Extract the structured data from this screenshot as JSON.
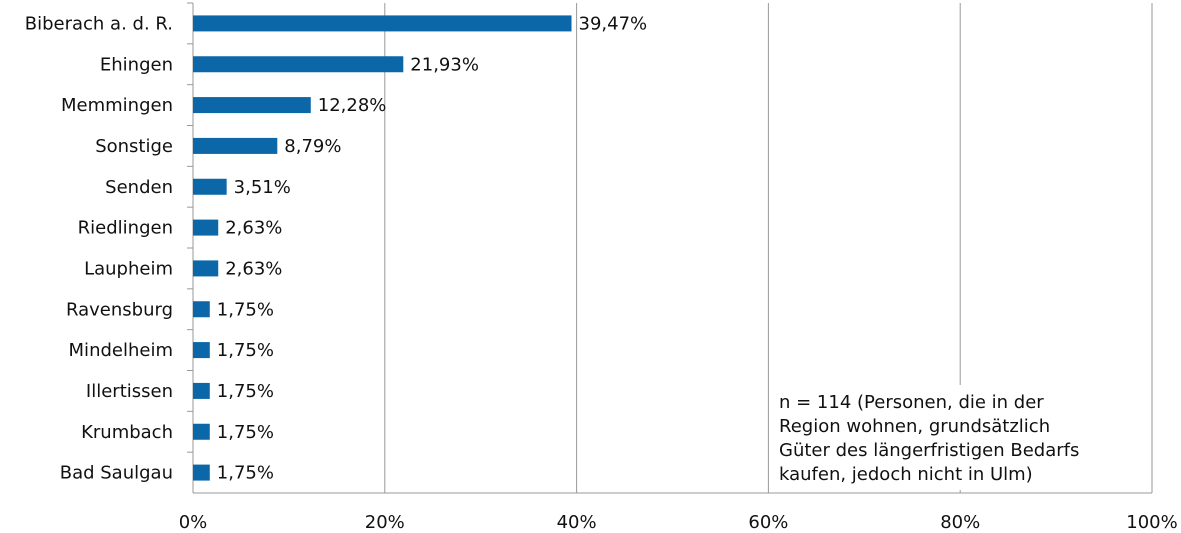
{
  "chart_data": {
    "type": "hbar",
    "categories": [
      "Biberach a. d. R.",
      "Ehingen",
      "Memmingen",
      "Sonstige",
      "Senden",
      "Riedlingen",
      "Laupheim",
      "Ravensburg",
      "Mindelheim",
      "Illertissen",
      "Krumbach",
      "Bad Saulgau"
    ],
    "values": [
      39.47,
      21.93,
      12.28,
      8.79,
      3.51,
      2.63,
      2.63,
      1.75,
      1.75,
      1.75,
      1.75,
      1.75
    ],
    "value_labels": [
      "39,47%",
      "21,93%",
      "12,28%",
      "8,79%",
      "3,51%",
      "2,63%",
      "2,63%",
      "1,75%",
      "1,75%",
      "1,75%",
      "1,75%",
      "1,75%"
    ],
    "color": "#0b67a8",
    "xlim": [
      0,
      100
    ],
    "xticks": [
      {
        "value": 0,
        "label": "0%"
      },
      {
        "value": 20,
        "label": "20%"
      },
      {
        "value": 40,
        "label": "40%"
      },
      {
        "value": 60,
        "label": "60%"
      },
      {
        "value": 80,
        "label": "80%"
      },
      {
        "value": 100,
        "label": "100%"
      }
    ],
    "grid": true,
    "annotation": [
      "n = 114 (Personen, die in der",
      "Region wohnen, grundsätzlich",
      "Güter des längerfristigen Bedarfs",
      "kaufen, jedoch nicht in Ulm)"
    ]
  }
}
